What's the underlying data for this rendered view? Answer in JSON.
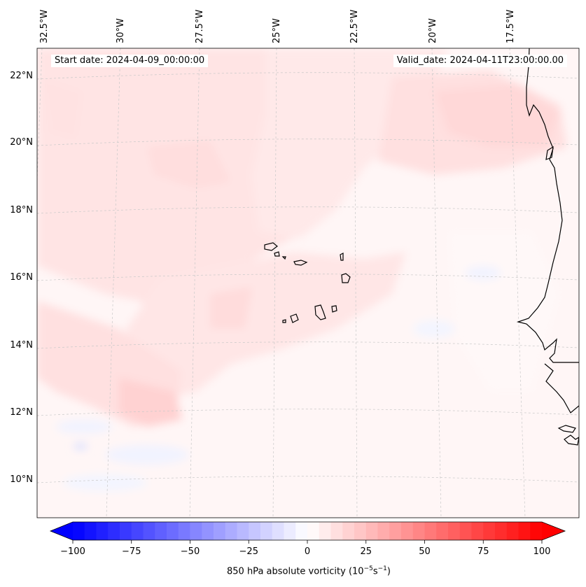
{
  "map": {
    "start_date": "Start date: 2024-04-09_00:00:00",
    "valid_date": "Valid_date: 2024-04-11T23:00:00.00",
    "lon_labels": [
      "32.5°W",
      "30°W",
      "27.5°W",
      "25°W",
      "22.5°W",
      "20°W",
      "17.5°W"
    ],
    "lat_labels": [
      "22°N",
      "20°N",
      "18°N",
      "16°N",
      "14°N",
      "12°N",
      "10°N"
    ],
    "field_colors": {
      "background": "#fff6f6",
      "light_red": "#ffe5e5",
      "medium_red": "#ffd6d6",
      "light_blue": "#f3f5ff",
      "coast": "#000000",
      "grid": "#c8c8c8"
    }
  },
  "colorbar": {
    "label_prefix": "850 hPa absolute vorticity (10",
    "label_exp1": "−5",
    "label_mid": "s",
    "label_exp2": "−1",
    "label_suffix": ")",
    "vmin": -100,
    "vmax": 100,
    "ticks": [
      "−100",
      "−75",
      "−50",
      "−25",
      "0",
      "25",
      "50",
      "75",
      "100"
    ],
    "tick_values": [
      -100,
      -75,
      -50,
      -25,
      0,
      25,
      50,
      75,
      100
    ],
    "low_color": "#0000ff",
    "mid_color": "#ffffff",
    "high_color": "#ff0000"
  }
}
